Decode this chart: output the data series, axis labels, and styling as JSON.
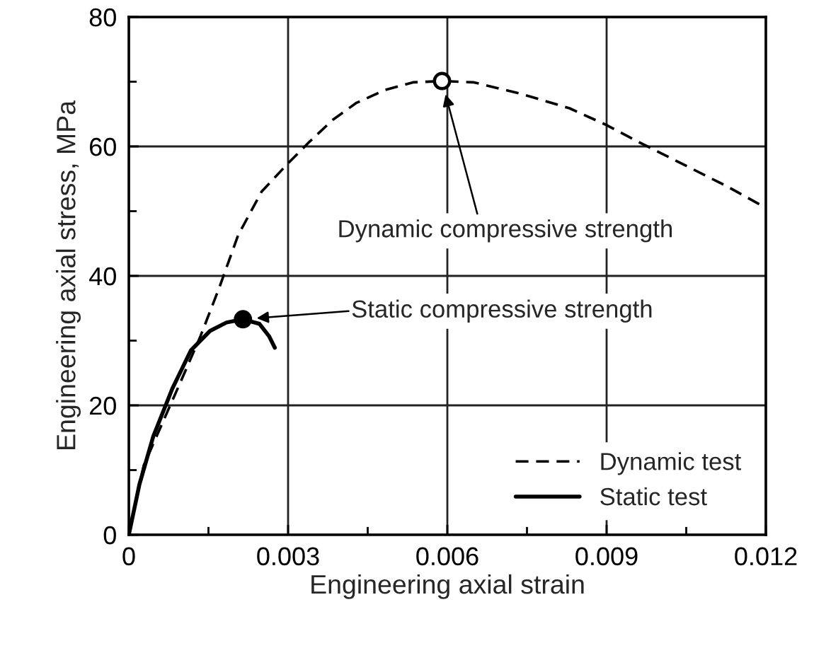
{
  "chart_data": {
    "type": "line",
    "xlabel": "Engineering axial strain",
    "ylabel": "Engineering axial stress, MPa",
    "xlim": [
      0,
      0.012
    ],
    "ylim": [
      0,
      80
    ],
    "xticks": [
      0,
      0.003,
      0.006,
      0.009,
      0.012
    ],
    "yticks": [
      0,
      20,
      40,
      60,
      80
    ],
    "grid": true,
    "legend": "bottom right",
    "series": [
      {
        "name": "Dynamic test",
        "type": "line",
        "color": "#000000",
        "line_style": "dashed",
        "x": [
          0,
          0.00028,
          0.00064,
          0.001,
          0.00135,
          0.0017,
          0.00206,
          0.0025,
          0.003,
          0.0034,
          0.00384,
          0.00428,
          0.00482,
          0.00535,
          0.0059,
          0.0065,
          0.0074,
          0.0083,
          0.009,
          0.0096,
          0.0105,
          0.0113,
          0.012
        ],
        "values": [
          0,
          10.7,
          17.4,
          24.1,
          30.7,
          38.1,
          46.3,
          53,
          57.4,
          60.7,
          64.1,
          66.7,
          68.7,
          69.9,
          70.1,
          69.9,
          68.1,
          65.9,
          63.3,
          60.7,
          57,
          53.7,
          50.5
        ]
      },
      {
        "name": "Static test",
        "type": "line",
        "color": "#000000",
        "line_style": "solid",
        "x": [
          0,
          0.0002,
          0.00046,
          0.00082,
          0.00117,
          0.00153,
          0.00184,
          0.00215,
          0.00246,
          0.00264,
          0.00275
        ],
        "values": [
          0,
          7.8,
          15.2,
          22.6,
          28.5,
          31.5,
          32.8,
          33.3,
          32.6,
          30.7,
          28.9
        ]
      },
      {
        "type": "scatter",
        "color": "#ffffff",
        "marker": "circle",
        "x": [
          0.0059
        ],
        "values": [
          70.1
        ]
      },
      {
        "type": "scatter",
        "color": "#000000",
        "marker": "circle",
        "x": [
          0.00215
        ],
        "values": [
          33.3
        ]
      }
    ],
    "annotations": [
      "Dynamic compressive strength",
      "Static compressive strength"
    ]
  }
}
